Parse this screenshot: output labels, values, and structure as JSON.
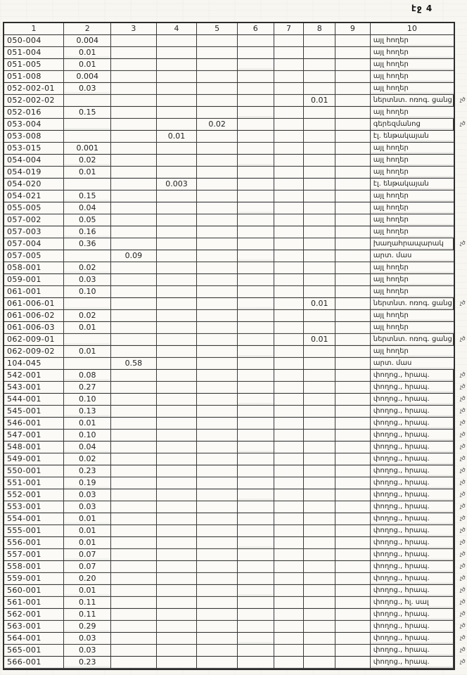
{
  "page": {
    "label": "էջ 4"
  },
  "table": {
    "columns": [
      "1",
      "2",
      "3",
      "4",
      "5",
      "6",
      "7",
      "8",
      "9",
      "10"
    ],
    "marginal_mark": "չծ",
    "rows": [
      {
        "cells": [
          "050-004",
          "0.004",
          "",
          "",
          "",
          "",
          "",
          "",
          "",
          "այլ հողեր"
        ],
        "mark": false
      },
      {
        "cells": [
          "051-004",
          "0.01",
          "",
          "",
          "",
          "",
          "",
          "",
          "",
          "այլ հողեր"
        ],
        "mark": false
      },
      {
        "cells": [
          "051-005",
          "0.01",
          "",
          "",
          "",
          "",
          "",
          "",
          "",
          "այլ հողեր"
        ],
        "mark": false
      },
      {
        "cells": [
          "051-008",
          "0.004",
          "",
          "",
          "",
          "",
          "",
          "",
          "",
          "այլ հողեր"
        ],
        "mark": false
      },
      {
        "cells": [
          "052-002-01",
          "0.03",
          "",
          "",
          "",
          "",
          "",
          "",
          "",
          "այլ հողեր"
        ],
        "mark": false
      },
      {
        "cells": [
          "052-002-02",
          "",
          "",
          "",
          "",
          "",
          "",
          "0.01",
          "",
          "ներտնտ. ոռոգ. ցանց"
        ],
        "mark": true
      },
      {
        "cells": [
          "052-016",
          "0.15",
          "",
          "",
          "",
          "",
          "",
          "",
          "",
          "այլ հողեր"
        ],
        "mark": false
      },
      {
        "cells": [
          "053-004",
          "",
          "",
          "",
          "0.02",
          "",
          "",
          "",
          "",
          "գերեզմանոց"
        ],
        "mark": true
      },
      {
        "cells": [
          "053-008",
          "",
          "",
          "0.01",
          "",
          "",
          "",
          "",
          "",
          "էլ. ենթակայան"
        ],
        "mark": false
      },
      {
        "cells": [
          "053-015",
          "0.001",
          "",
          "",
          "",
          "",
          "",
          "",
          "",
          "այլ հողեր"
        ],
        "mark": false
      },
      {
        "cells": [
          "054-004",
          "0.02",
          "",
          "",
          "",
          "",
          "",
          "",
          "",
          "այլ հողեր"
        ],
        "mark": false
      },
      {
        "cells": [
          "054-019",
          "0.01",
          "",
          "",
          "",
          "",
          "",
          "",
          "",
          "այլ հողեր"
        ],
        "mark": false
      },
      {
        "cells": [
          "054-020",
          "",
          "",
          "0.003",
          "",
          "",
          "",
          "",
          "",
          "էլ. ենթակայան"
        ],
        "mark": false
      },
      {
        "cells": [
          "054-021",
          "0.15",
          "",
          "",
          "",
          "",
          "",
          "",
          "",
          "այլ հողեր"
        ],
        "mark": false
      },
      {
        "cells": [
          "055-005",
          "0.04",
          "",
          "",
          "",
          "",
          "",
          "",
          "",
          "այլ հողեր"
        ],
        "mark": false
      },
      {
        "cells": [
          "057-002",
          "0.05",
          "",
          "",
          "",
          "",
          "",
          "",
          "",
          "այլ հողեր"
        ],
        "mark": false
      },
      {
        "cells": [
          "057-003",
          "0.16",
          "",
          "",
          "",
          "",
          "",
          "",
          "",
          "այլ հողեր"
        ],
        "mark": false
      },
      {
        "cells": [
          "057-004",
          "0.36",
          "",
          "",
          "",
          "",
          "",
          "",
          "",
          "խաղահրապարակ"
        ],
        "mark": true
      },
      {
        "cells": [
          "057-005",
          "",
          "0.09",
          "",
          "",
          "",
          "",
          "",
          "",
          "արտ. մաս"
        ],
        "mark": false
      },
      {
        "cells": [
          "058-001",
          "0.02",
          "",
          "",
          "",
          "",
          "",
          "",
          "",
          "այլ հողեր"
        ],
        "mark": false
      },
      {
        "cells": [
          "059-001",
          "0.03",
          "",
          "",
          "",
          "",
          "",
          "",
          "",
          "այլ հողեր"
        ],
        "mark": false
      },
      {
        "cells": [
          "061-001",
          "0.10",
          "",
          "",
          "",
          "",
          "",
          "",
          "",
          "այլ հողեր"
        ],
        "mark": false
      },
      {
        "cells": [
          "061-006-01",
          "",
          "",
          "",
          "",
          "",
          "",
          "0.01",
          "",
          "ներտնտ. ոռոգ. ցանց"
        ],
        "mark": true
      },
      {
        "cells": [
          "061-006-02",
          "0.02",
          "",
          "",
          "",
          "",
          "",
          "",
          "",
          "այլ հողեր"
        ],
        "mark": false
      },
      {
        "cells": [
          "061-006-03",
          "0.01",
          "",
          "",
          "",
          "",
          "",
          "",
          "",
          "այլ հողեր"
        ],
        "mark": false
      },
      {
        "cells": [
          "062-009-01",
          "",
          "",
          "",
          "",
          "",
          "",
          "0.01",
          "",
          "ներտնտ. ոռոգ. ցանց"
        ],
        "mark": true
      },
      {
        "cells": [
          "062-009-02",
          "0.01",
          "",
          "",
          "",
          "",
          "",
          "",
          "",
          "այլ հողեր"
        ],
        "mark": false
      },
      {
        "cells": [
          "104-045",
          "",
          "0.58",
          "",
          "",
          "",
          "",
          "",
          "",
          "արտ. մաս"
        ],
        "mark": false
      },
      {
        "cells": [
          "542-001",
          "0.08",
          "",
          "",
          "",
          "",
          "",
          "",
          "",
          "փողոց., հրապ."
        ],
        "mark": true
      },
      {
        "cells": [
          "543-001",
          "0.27",
          "",
          "",
          "",
          "",
          "",
          "",
          "",
          "փողոց., հրապ."
        ],
        "mark": true
      },
      {
        "cells": [
          "544-001",
          "0.10",
          "",
          "",
          "",
          "",
          "",
          "",
          "",
          "փողոց., հրապ."
        ],
        "mark": true
      },
      {
        "cells": [
          "545-001",
          "0.13",
          "",
          "",
          "",
          "",
          "",
          "",
          "",
          "փողոց., հրապ."
        ],
        "mark": true
      },
      {
        "cells": [
          "546-001",
          "0.01",
          "",
          "",
          "",
          "",
          "",
          "",
          "",
          "փողոց., հրապ."
        ],
        "mark": true
      },
      {
        "cells": [
          "547-001",
          "0.10",
          "",
          "",
          "",
          "",
          "",
          "",
          "",
          "փողոց., հրապ."
        ],
        "mark": true
      },
      {
        "cells": [
          "548-001",
          "0.04",
          "",
          "",
          "",
          "",
          "",
          "",
          "",
          "փողոց., հրապ."
        ],
        "mark": true
      },
      {
        "cells": [
          "549-001",
          "0.02",
          "",
          "",
          "",
          "",
          "",
          "",
          "",
          "փողոց., հրապ."
        ],
        "mark": true
      },
      {
        "cells": [
          "550-001",
          "0.23",
          "",
          "",
          "",
          "",
          "",
          "",
          "",
          "փողոց., հրապ."
        ],
        "mark": true
      },
      {
        "cells": [
          "551-001",
          "0.19",
          "",
          "",
          "",
          "",
          "",
          "",
          "",
          "փողոց., հրապ."
        ],
        "mark": true
      },
      {
        "cells": [
          "552-001",
          "0.03",
          "",
          "",
          "",
          "",
          "",
          "",
          "",
          "փողոց., հրապ."
        ],
        "mark": true
      },
      {
        "cells": [
          "553-001",
          "0.03",
          "",
          "",
          "",
          "",
          "",
          "",
          "",
          "փողոց., հրապ."
        ],
        "mark": true
      },
      {
        "cells": [
          "554-001",
          "0.01",
          "",
          "",
          "",
          "",
          "",
          "",
          "",
          "փողոց., հրապ."
        ],
        "mark": true
      },
      {
        "cells": [
          "555-001",
          "0.01",
          "",
          "",
          "",
          "",
          "",
          "",
          "",
          "փողոց., հրապ."
        ],
        "mark": true
      },
      {
        "cells": [
          "556-001",
          "0.01",
          "",
          "",
          "",
          "",
          "",
          "",
          "",
          "փողոց., հրապ."
        ],
        "mark": true
      },
      {
        "cells": [
          "557-001",
          "0.07",
          "",
          "",
          "",
          "",
          "",
          "",
          "",
          "փողոց., հրապ."
        ],
        "mark": true
      },
      {
        "cells": [
          "558-001",
          "0.07",
          "",
          "",
          "",
          "",
          "",
          "",
          "",
          "փողոց., հրապ."
        ],
        "mark": true
      },
      {
        "cells": [
          "559-001",
          "0.20",
          "",
          "",
          "",
          "",
          "",
          "",
          "",
          "փողոց., հրապ."
        ],
        "mark": true
      },
      {
        "cells": [
          "560-001",
          "0.01",
          "",
          "",
          "",
          "",
          "",
          "",
          "",
          "փողոց., հրապ."
        ],
        "mark": true
      },
      {
        "cells": [
          "561-001",
          "0.11",
          "",
          "",
          "",
          "",
          "",
          "",
          "",
          "փողոց., հլ. սալ"
        ],
        "mark": true
      },
      {
        "cells": [
          "562-001",
          "0.11",
          "",
          "",
          "",
          "",
          "",
          "",
          "",
          "փողոց., հրապ."
        ],
        "mark": true
      },
      {
        "cells": [
          "563-001",
          "0.29",
          "",
          "",
          "",
          "",
          "",
          "",
          "",
          "փողոց., հրապ."
        ],
        "mark": true
      },
      {
        "cells": [
          "564-001",
          "0.03",
          "",
          "",
          "",
          "",
          "",
          "",
          "",
          "փողոց., հրապ."
        ],
        "mark": true
      },
      {
        "cells": [
          "565-001",
          "0.03",
          "",
          "",
          "",
          "",
          "",
          "",
          "",
          "փողոց., հրապ."
        ],
        "mark": true
      },
      {
        "cells": [
          "566-001",
          "0.23",
          "",
          "",
          "",
          "",
          "",
          "",
          "",
          "փողոց., հրապ."
        ],
        "mark": true
      }
    ]
  }
}
